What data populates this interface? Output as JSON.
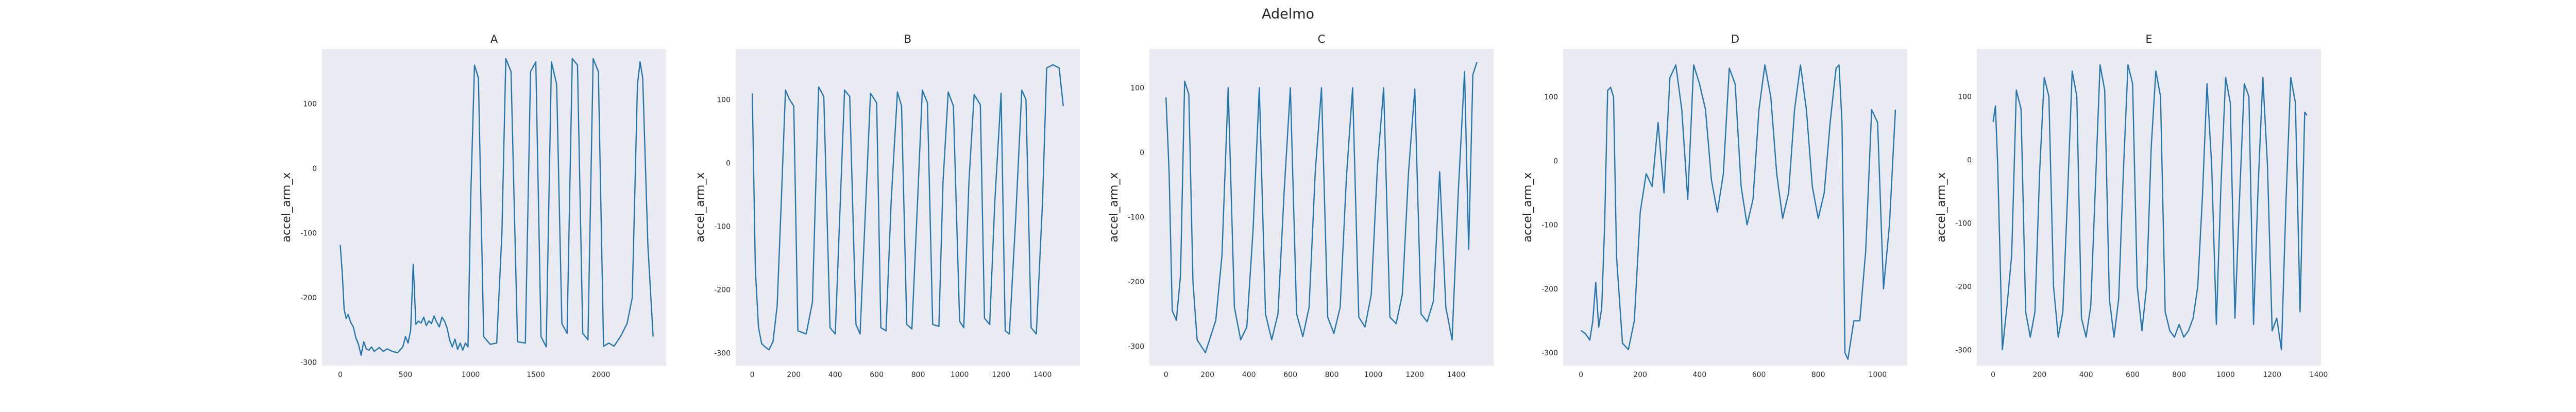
{
  "figure": {
    "title": "Adelmo",
    "background": "#ffffff",
    "panel_background": "#eaeaf2",
    "line_color": "#1f77b4"
  },
  "chart_data": [
    {
      "type": "line",
      "title": "A",
      "xlabel": "",
      "ylabel": "accel_arm_x",
      "grid": false,
      "xlim": [
        -140,
        2500
      ],
      "ylim": [
        -305,
        185
      ],
      "xticks": [
        0,
        500,
        1000,
        1500,
        2000
      ],
      "yticks": [
        -300,
        -200,
        -100,
        0,
        100
      ],
      "series": [
        {
          "x": [
            0,
            15,
            30,
            45,
            60,
            80,
            100,
            120,
            140,
            160,
            180,
            200,
            220,
            240,
            260,
            280,
            300,
            330,
            360,
            400,
            440,
            480,
            500,
            520,
            540,
            560,
            580,
            600,
            620,
            640,
            660,
            680,
            700,
            720,
            740,
            760,
            780,
            800,
            820,
            840,
            860,
            880,
            900,
            920,
            940,
            960,
            980,
            1000,
            1030,
            1060,
            1100,
            1150,
            1200,
            1240,
            1270,
            1310,
            1360,
            1420,
            1460,
            1500,
            1540,
            1580,
            1620,
            1660,
            1700,
            1740,
            1780,
            1820,
            1860,
            1900,
            1940,
            1980,
            2020,
            2060,
            2100,
            2150,
            2200,
            2240,
            2280,
            2300,
            2320,
            2360,
            2400
          ],
          "y": [
            -118,
            -160,
            -218,
            -232,
            -226,
            -238,
            -245,
            -262,
            -272,
            -289,
            -268,
            -279,
            -281,
            -276,
            -283,
            -280,
            -277,
            -283,
            -279,
            -283,
            -285,
            -276,
            -260,
            -270,
            -250,
            -148,
            -241,
            -236,
            -239,
            -230,
            -243,
            -236,
            -240,
            -228,
            -238,
            -245,
            -230,
            -236,
            -247,
            -266,
            -276,
            -264,
            -280,
            -270,
            -281,
            -270,
            -276,
            -50,
            160,
            140,
            -260,
            -272,
            -270,
            -100,
            170,
            150,
            -268,
            -270,
            150,
            165,
            -260,
            -276,
            165,
            130,
            -240,
            -255,
            170,
            160,
            -255,
            -265,
            170,
            150,
            -275,
            -270,
            -275,
            -260,
            -240,
            -200,
            130,
            165,
            140,
            -120,
            -260
          ]
        }
      ]
    },
    {
      "type": "line",
      "title": "B",
      "xlabel": "",
      "ylabel": "accel_arm_x",
      "grid": false,
      "xlim": [
        -80,
        1580
      ],
      "ylim": [
        -320,
        180
      ],
      "xticks": [
        0,
        200,
        400,
        600,
        800,
        1000,
        1200,
        1400
      ],
      "yticks": [
        -300,
        -200,
        -100,
        0,
        100
      ],
      "series": [
        {
          "x": [
            0,
            15,
            30,
            45,
            60,
            80,
            100,
            120,
            140,
            160,
            180,
            200,
            220,
            260,
            290,
            320,
            345,
            375,
            400,
            420,
            445,
            470,
            500,
            520,
            545,
            570,
            600,
            620,
            645,
            670,
            700,
            720,
            745,
            770,
            800,
            820,
            845,
            870,
            900,
            920,
            945,
            970,
            1000,
            1020,
            1045,
            1070,
            1100,
            1120,
            1145,
            1170,
            1200,
            1220,
            1240,
            1270,
            1300,
            1320,
            1345,
            1370,
            1400,
            1420,
            1450,
            1480,
            1500
          ],
          "y": [
            110,
            -170,
            -260,
            -285,
            -290,
            -295,
            -282,
            -225,
            -60,
            115,
            100,
            90,
            -265,
            -270,
            -220,
            120,
            105,
            -260,
            -270,
            -100,
            115,
            105,
            -255,
            -270,
            -80,
            110,
            95,
            -260,
            -265,
            -60,
            112,
            90,
            -255,
            -262,
            -40,
            115,
            95,
            -255,
            -258,
            -30,
            112,
            90,
            -250,
            -260,
            -30,
            108,
            92,
            -245,
            -255,
            -60,
            110,
            -265,
            -270,
            -90,
            115,
            100,
            -260,
            -270,
            -60,
            150,
            155,
            150,
            90
          ]
        }
      ]
    },
    {
      "type": "line",
      "title": "C",
      "xlabel": "",
      "ylabel": "accel_arm_x",
      "grid": false,
      "xlim": [
        -80,
        1580
      ],
      "ylim": [
        -330,
        160
      ],
      "xticks": [
        0,
        200,
        400,
        600,
        800,
        1000,
        1200,
        1400
      ],
      "yticks": [
        -300,
        -200,
        -100,
        0,
        100
      ],
      "series": [
        {
          "x": [
            0,
            15,
            30,
            50,
            70,
            90,
            110,
            130,
            150,
            170,
            190,
            210,
            240,
            270,
            300,
            330,
            360,
            390,
            420,
            450,
            480,
            510,
            540,
            570,
            600,
            630,
            660,
            690,
            720,
            750,
            780,
            810,
            840,
            870,
            900,
            930,
            960,
            990,
            1020,
            1050,
            1080,
            1110,
            1140,
            1170,
            1200,
            1230,
            1260,
            1290,
            1320,
            1350,
            1380,
            1410,
            1440,
            1460,
            1480,
            1500
          ],
          "y": [
            85,
            -30,
            -245,
            -260,
            -190,
            110,
            90,
            -200,
            -290,
            -300,
            -310,
            -290,
            -260,
            -160,
            100,
            -240,
            -290,
            -270,
            -120,
            100,
            -250,
            -290,
            -250,
            -60,
            100,
            -250,
            -285,
            -240,
            -30,
            100,
            -255,
            -280,
            -240,
            -40,
            100,
            -255,
            -270,
            -220,
            -20,
            100,
            -255,
            -265,
            -220,
            -30,
            98,
            -250,
            -262,
            -230,
            -30,
            -240,
            -290,
            -60,
            125,
            -150,
            120,
            140
          ]
        }
      ]
    },
    {
      "type": "line",
      "title": "D",
      "xlabel": "",
      "ylabel": "accel_arm_x",
      "grid": false,
      "xlim": [
        -60,
        1100
      ],
      "ylim": [
        -320,
        175
      ],
      "xticks": [
        0,
        200,
        400,
        600,
        800,
        1000
      ],
      "yticks": [
        -300,
        -200,
        -100,
        0,
        100
      ],
      "series": [
        {
          "x": [
            0,
            15,
            30,
            40,
            50,
            60,
            70,
            80,
            90,
            100,
            110,
            120,
            140,
            160,
            180,
            200,
            220,
            240,
            260,
            280,
            300,
            320,
            340,
            360,
            380,
            400,
            420,
            440,
            460,
            480,
            500,
            520,
            540,
            560,
            580,
            600,
            620,
            640,
            660,
            680,
            700,
            720,
            740,
            760,
            780,
            800,
            820,
            840,
            860,
            870,
            880,
            890,
            900,
            920,
            940,
            960,
            980,
            1000,
            1020,
            1040,
            1060
          ],
          "y": [
            -265,
            -270,
            -280,
            -250,
            -190,
            -260,
            -230,
            -100,
            110,
            115,
            100,
            -150,
            -285,
            -295,
            -250,
            -80,
            -20,
            -40,
            60,
            -50,
            130,
            150,
            80,
            -60,
            150,
            120,
            80,
            -30,
            -80,
            -20,
            145,
            120,
            -40,
            -100,
            -60,
            80,
            150,
            100,
            -20,
            -90,
            -50,
            80,
            150,
            80,
            -40,
            -90,
            -50,
            60,
            145,
            150,
            60,
            -300,
            -310,
            -250,
            -250,
            -140,
            80,
            60,
            -200,
            -100,
            80
          ]
        }
      ]
    },
    {
      "type": "line",
      "title": "E",
      "xlabel": "",
      "ylabel": "accel_arm_x",
      "grid": false,
      "xlim": [
        -70,
        1410
      ],
      "ylim": [
        -325,
        175
      ],
      "xticks": [
        0,
        200,
        400,
        600,
        800,
        1000,
        1200,
        1400
      ],
      "yticks": [
        -300,
        -200,
        -100,
        0,
        100
      ],
      "series": [
        {
          "x": [
            0,
            10,
            20,
            40,
            60,
            80,
            100,
            120,
            140,
            160,
            180,
            200,
            220,
            240,
            260,
            280,
            300,
            320,
            340,
            360,
            380,
            400,
            420,
            440,
            460,
            480,
            500,
            520,
            540,
            560,
            580,
            600,
            620,
            640,
            660,
            680,
            700,
            720,
            740,
            760,
            780,
            800,
            820,
            840,
            860,
            880,
            900,
            920,
            940,
            960,
            980,
            1000,
            1020,
            1040,
            1060,
            1080,
            1100,
            1120,
            1140,
            1160,
            1180,
            1200,
            1220,
            1240,
            1260,
            1280,
            1300,
            1320,
            1340,
            1350
          ],
          "y": [
            60,
            85,
            -10,
            -300,
            -230,
            -150,
            110,
            80,
            -240,
            -280,
            -240,
            -20,
            130,
            100,
            -200,
            -280,
            -240,
            -60,
            140,
            100,
            -250,
            -280,
            -230,
            -40,
            150,
            110,
            -220,
            -280,
            -220,
            -20,
            150,
            120,
            -200,
            -270,
            -200,
            20,
            140,
            100,
            -240,
            -270,
            -280,
            -260,
            -280,
            -270,
            -250,
            -200,
            -60,
            120,
            -10,
            -260,
            -40,
            130,
            90,
            -250,
            -60,
            120,
            100,
            -260,
            -40,
            130,
            -10,
            -270,
            -250,
            -300,
            -60,
            130,
            90,
            -240,
            75,
            70
          ]
        }
      ]
    }
  ]
}
